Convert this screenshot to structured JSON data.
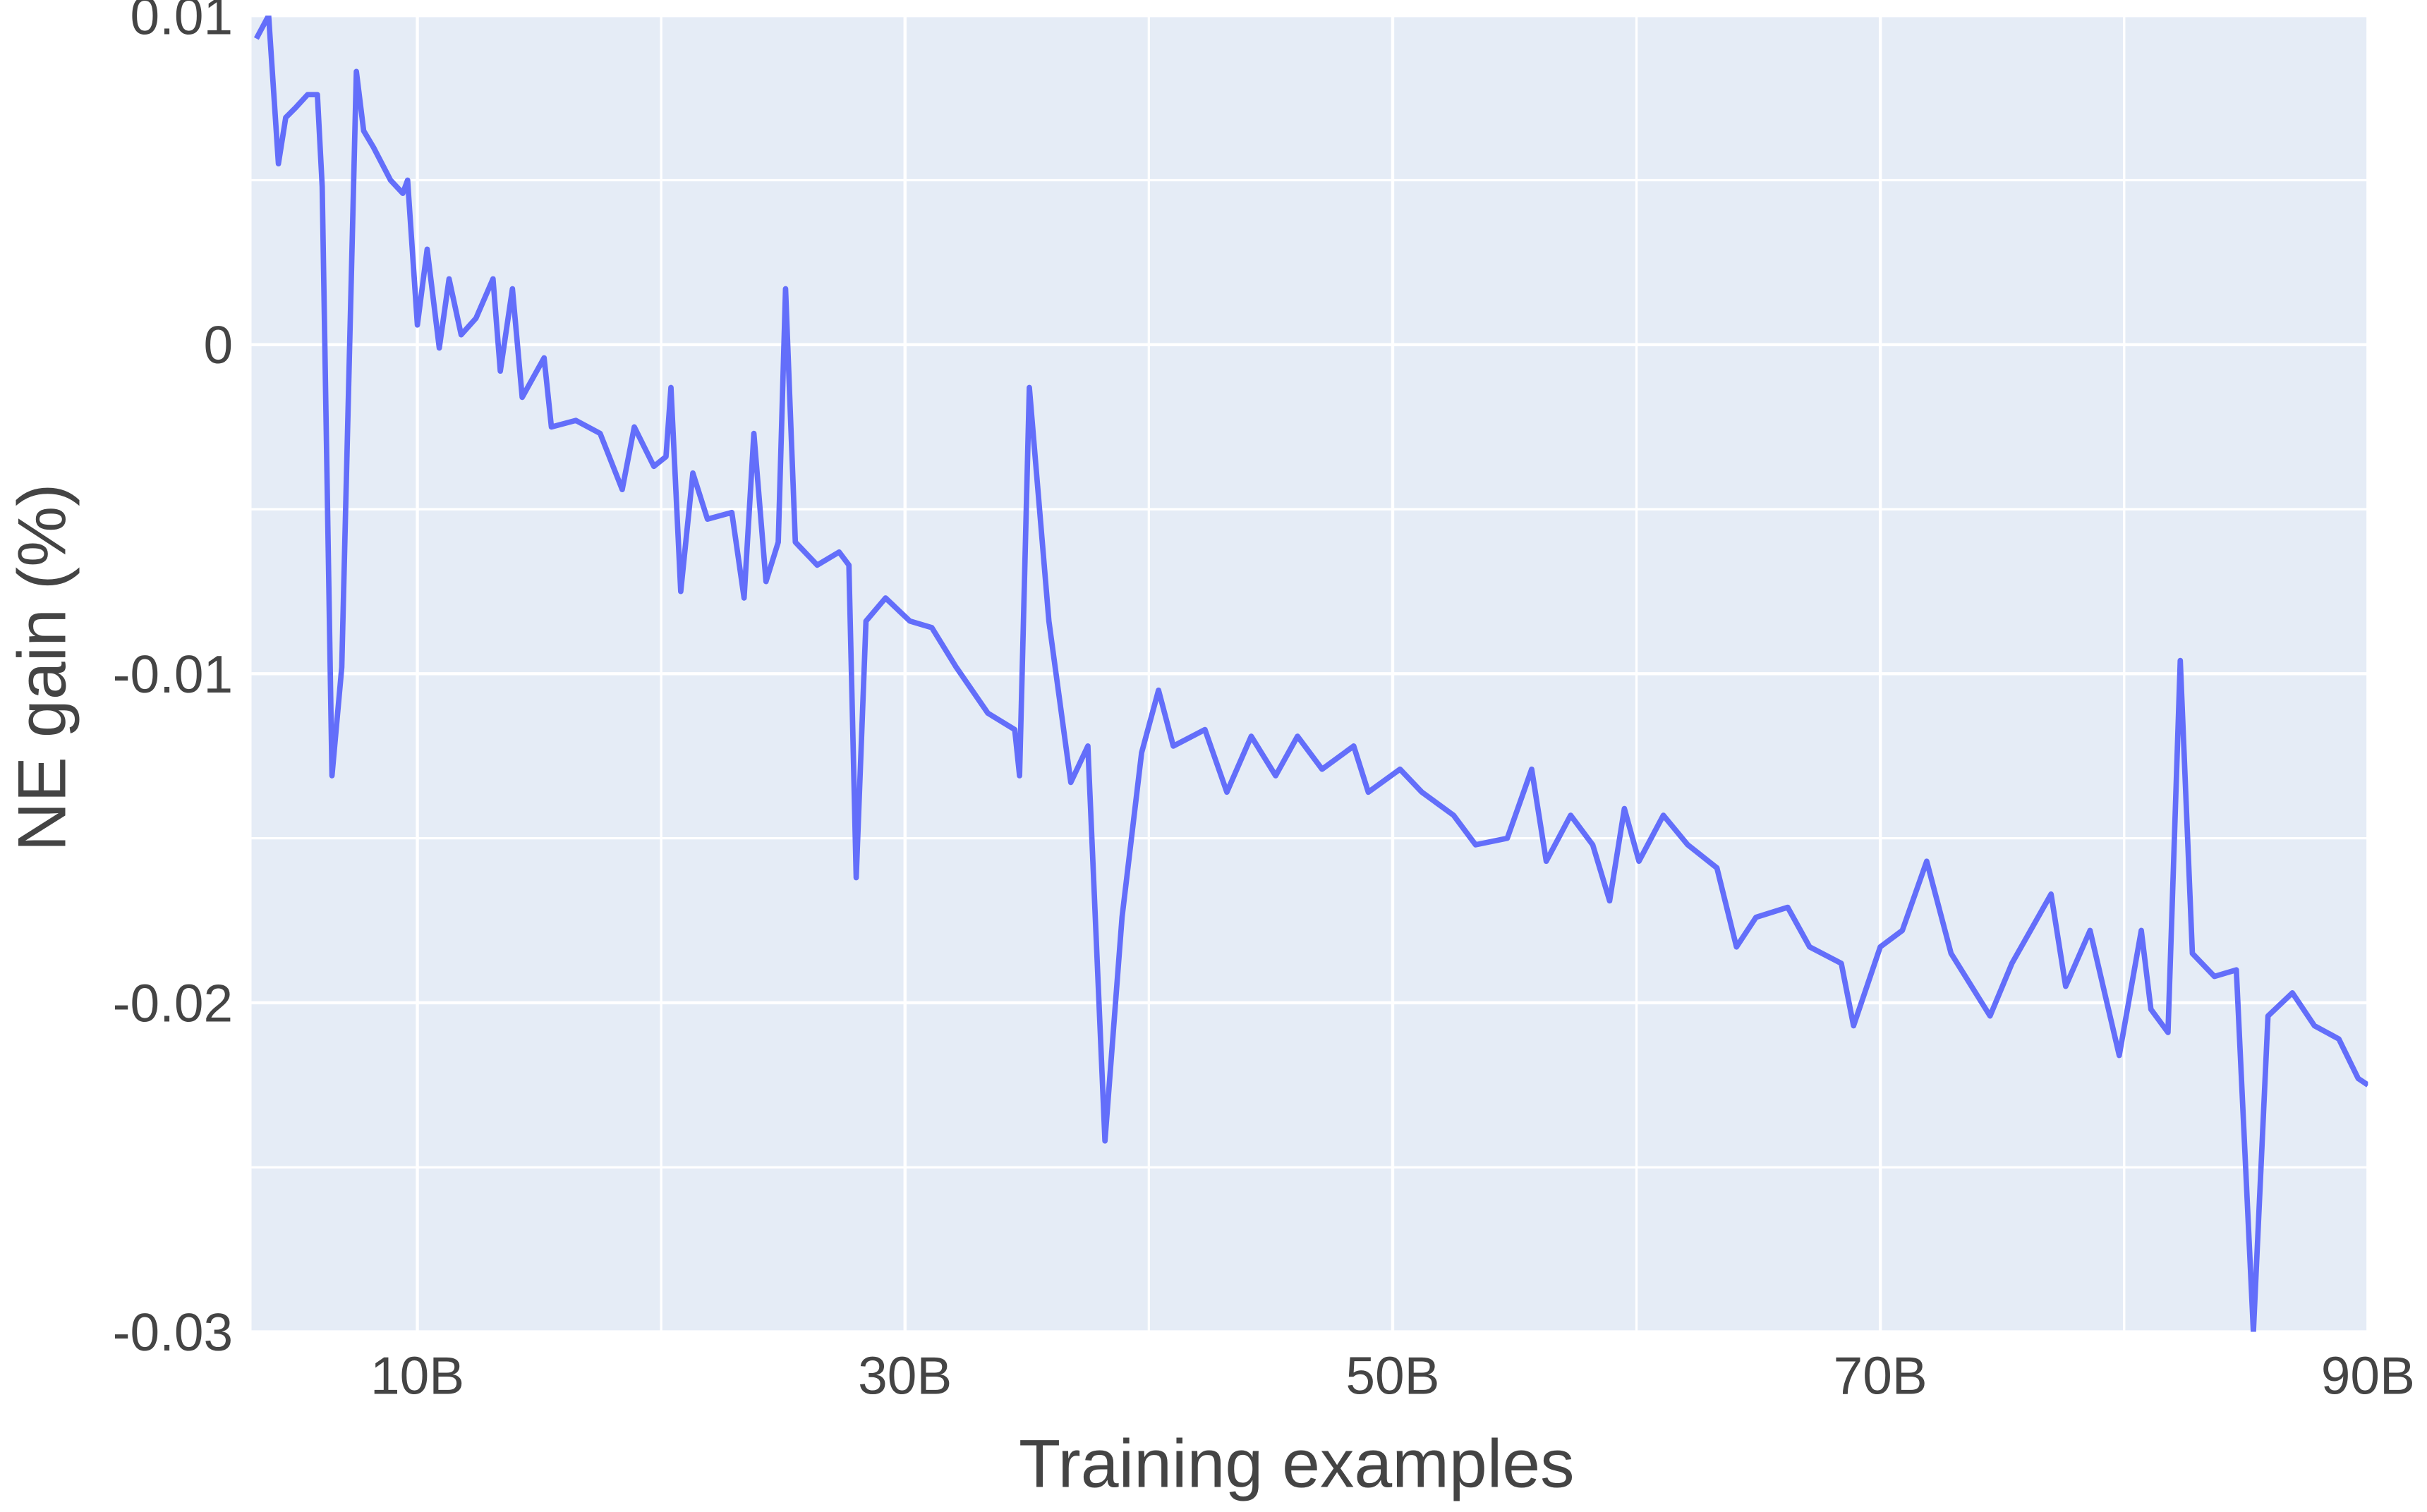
{
  "chart_data": {
    "type": "line",
    "x_label": "Training examples",
    "y_label": "NE gain (%)",
    "xlim": [
      3.2,
      90
    ],
    "ylim": [
      -0.03,
      0.01
    ],
    "xticks": [
      {
        "value": 10,
        "label": "10B"
      },
      {
        "value": 30,
        "label": "30B"
      },
      {
        "value": 50,
        "label": "50B"
      },
      {
        "value": 70,
        "label": "70B"
      },
      {
        "value": 90,
        "label": "90B"
      }
    ],
    "xminor": [
      20,
      40,
      60,
      80
    ],
    "yticks": [
      -0.03,
      -0.02,
      -0.01,
      0,
      0.01
    ],
    "yminor": [
      -0.025,
      -0.015,
      -0.005,
      0.005
    ],
    "grid": true,
    "background": "#e5ecf6",
    "series": [
      {
        "color": "#636efa",
        "x": [
          3.4,
          3.9,
          4.3,
          4.6,
          5.0,
          5.5,
          5.9,
          6.1,
          6.5,
          6.9,
          7.5,
          7.8,
          8.2,
          8.9,
          9.4,
          9.6,
          10.0,
          10.4,
          10.9,
          11.3,
          11.8,
          12.4,
          13.1,
          13.4,
          13.9,
          14.3,
          15.2,
          15.5,
          16.5,
          17.5,
          18.4,
          18.9,
          19.7,
          20.2,
          20.4,
          20.8,
          21.3,
          21.9,
          22.9,
          23.4,
          23.8,
          24.3,
          24.8,
          25.1,
          25.5,
          26.4,
          27.3,
          27.7,
          28.0,
          28.4,
          29.2,
          30.2,
          31.1,
          32.1,
          33.4,
          34.5,
          34.7,
          35.1,
          35.9,
          36.8,
          37.5,
          38.2,
          38.9,
          39.7,
          40.4,
          41.0,
          42.3,
          43.2,
          44.2,
          45.2,
          46.1,
          47.1,
          48.4,
          49.0,
          50.3,
          51.2,
          52.5,
          53.4,
          54.7,
          55.7,
          56.3,
          57.3,
          58.2,
          58.9,
          59.5,
          60.1,
          61.1,
          62.1,
          63.3,
          64.1,
          64.9,
          66.2,
          67.1,
          68.4,
          68.9,
          70.0,
          70.9,
          71.9,
          72.9,
          74.5,
          75.4,
          77.0,
          77.6,
          78.6,
          79.8,
          80.7,
          81.1,
          81.8,
          82.3,
          82.8,
          83.7,
          84.6,
          85.3,
          85.9,
          86.9,
          87.8,
          88.8,
          89.6,
          90.0
        ],
        "values": [
          0.0093,
          0.01,
          0.0055,
          0.0069,
          0.0072,
          0.0076,
          0.0076,
          0.0048,
          -0.0131,
          -0.0098,
          0.0083,
          0.0065,
          0.006,
          0.005,
          0.0046,
          0.005,
          0.0006,
          0.0029,
          -0.0001,
          0.002,
          0.0003,
          0.0008,
          0.002,
          -0.0008,
          0.0017,
          -0.0016,
          -0.0004,
          -0.0025,
          -0.0023,
          -0.0027,
          -0.0044,
          -0.0025,
          -0.0037,
          -0.0034,
          -0.0013,
          -0.0075,
          -0.0039,
          -0.0053,
          -0.0051,
          -0.0077,
          -0.0027,
          -0.0072,
          -0.006,
          0.0017,
          -0.006,
          -0.0067,
          -0.0063,
          -0.0067,
          -0.0162,
          -0.0084,
          -0.0077,
          -0.0084,
          -0.0086,
          -0.0098,
          -0.0112,
          -0.0117,
          -0.0131,
          -0.0013,
          -0.0084,
          -0.0133,
          -0.0122,
          -0.0242,
          -0.0174,
          -0.0124,
          -0.0105,
          -0.0122,
          -0.0117,
          -0.0136,
          -0.0119,
          -0.0131,
          -0.0119,
          -0.0129,
          -0.0122,
          -0.0136,
          -0.0129,
          -0.0136,
          -0.0143,
          -0.0152,
          -0.015,
          -0.0129,
          -0.0157,
          -0.0143,
          -0.0152,
          -0.0169,
          -0.0141,
          -0.0157,
          -0.0143,
          -0.0152,
          -0.0159,
          -0.0183,
          -0.0174,
          -0.0171,
          -0.0183,
          -0.0188,
          -0.0207,
          -0.0183,
          -0.0178,
          -0.0157,
          -0.0185,
          -0.0204,
          -0.0188,
          -0.0167,
          -0.0195,
          -0.0178,
          -0.0216,
          -0.0178,
          -0.0202,
          -0.0209,
          -0.0096,
          -0.0185,
          -0.0192,
          -0.019,
          -0.03,
          -0.0204,
          -0.0197,
          -0.0207,
          -0.0211,
          -0.0223,
          -0.0225
        ]
      }
    ]
  }
}
